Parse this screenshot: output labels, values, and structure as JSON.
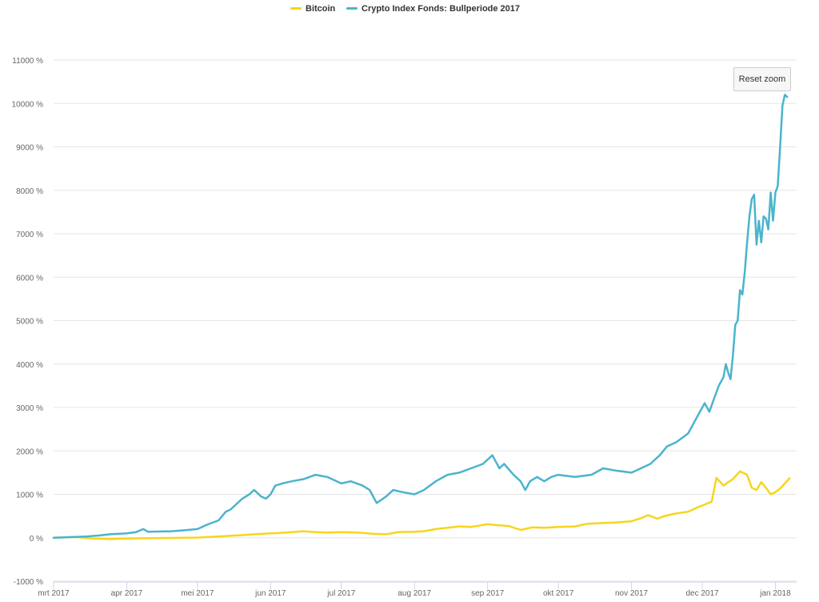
{
  "reset_zoom_label": "Reset zoom",
  "chart_data": {
    "type": "line",
    "y_unit": "%",
    "ylim": [
      -1000,
      11000
    ],
    "y_ticks": [
      -1000,
      0,
      1000,
      2000,
      3000,
      4000,
      5000,
      6000,
      7000,
      8000,
      9000,
      10000,
      11000
    ],
    "y_tick_labels": [
      "-1000 %",
      "0 %",
      "1000 %",
      "2000 %",
      "3000 %",
      "4000 %",
      "5000 %",
      "6000 %",
      "7000 %",
      "8000 %",
      "9000 %",
      "10000 %",
      "11000 %"
    ],
    "xlim": [
      "2017-03-01",
      "2018-01-10"
    ],
    "x_tick_dates": [
      "2017-03-01",
      "2017-04-01",
      "2017-05-01",
      "2017-06-01",
      "2017-07-01",
      "2017-08-01",
      "2017-09-01",
      "2017-10-01",
      "2017-11-01",
      "2017-12-01",
      "2018-01-01"
    ],
    "x_tick_labels": [
      "mrt 2017",
      "apr 2017",
      "mei 2017",
      "jun 2017",
      "jul 2017",
      "aug 2017",
      "sep 2017",
      "okt 2017",
      "nov 2017",
      "dec 2017",
      "jan 2018"
    ],
    "legend_position": "top-center",
    "grid": true,
    "series": [
      {
        "name": "Bitcoin",
        "color": "#f7d51d",
        "points": [
          [
            "2017-03-01",
            0
          ],
          [
            "2017-03-10",
            20
          ],
          [
            "2017-03-18",
            -20
          ],
          [
            "2017-03-25",
            -30
          ],
          [
            "2017-04-01",
            -20
          ],
          [
            "2017-04-10",
            -10
          ],
          [
            "2017-04-20",
            -5
          ],
          [
            "2017-05-01",
            5
          ],
          [
            "2017-05-10",
            30
          ],
          [
            "2017-05-20",
            60
          ],
          [
            "2017-05-25",
            80
          ],
          [
            "2017-06-01",
            100
          ],
          [
            "2017-06-05",
            110
          ],
          [
            "2017-06-10",
            130
          ],
          [
            "2017-06-15",
            150
          ],
          [
            "2017-06-20",
            130
          ],
          [
            "2017-06-25",
            120
          ],
          [
            "2017-07-01",
            130
          ],
          [
            "2017-07-08",
            120
          ],
          [
            "2017-07-15",
            90
          ],
          [
            "2017-07-20",
            80
          ],
          [
            "2017-07-25",
            130
          ],
          [
            "2017-08-01",
            140
          ],
          [
            "2017-08-05",
            150
          ],
          [
            "2017-08-10",
            200
          ],
          [
            "2017-08-15",
            230
          ],
          [
            "2017-08-20",
            260
          ],
          [
            "2017-08-25",
            250
          ],
          [
            "2017-09-01",
            310
          ],
          [
            "2017-09-05",
            290
          ],
          [
            "2017-09-10",
            270
          ],
          [
            "2017-09-15",
            180
          ],
          [
            "2017-09-20",
            240
          ],
          [
            "2017-09-25",
            230
          ],
          [
            "2017-10-01",
            250
          ],
          [
            "2017-10-08",
            260
          ],
          [
            "2017-10-13",
            320
          ],
          [
            "2017-10-20",
            340
          ],
          [
            "2017-10-25",
            350
          ],
          [
            "2017-11-01",
            380
          ],
          [
            "2017-11-05",
            450
          ],
          [
            "2017-11-08",
            520
          ],
          [
            "2017-11-12",
            440
          ],
          [
            "2017-11-15",
            500
          ],
          [
            "2017-11-20",
            560
          ],
          [
            "2017-11-25",
            600
          ],
          [
            "2017-11-29",
            700
          ],
          [
            "2017-12-01",
            740
          ],
          [
            "2017-12-05",
            830
          ],
          [
            "2017-12-07",
            1380
          ],
          [
            "2017-12-10",
            1200
          ],
          [
            "2017-12-12",
            1280
          ],
          [
            "2017-12-14",
            1350
          ],
          [
            "2017-12-17",
            1530
          ],
          [
            "2017-12-20",
            1450
          ],
          [
            "2017-12-22",
            1150
          ],
          [
            "2017-12-24",
            1100
          ],
          [
            "2017-12-26",
            1280
          ],
          [
            "2017-12-28",
            1150
          ],
          [
            "2017-12-30",
            1000
          ],
          [
            "2018-01-01",
            1050
          ],
          [
            "2018-01-03",
            1130
          ],
          [
            "2018-01-05",
            1250
          ],
          [
            "2018-01-07",
            1370
          ]
        ]
      },
      {
        "name": "Crypto Index Fonds: Bullperiode 2017",
        "color": "#4bb4cc",
        "points": [
          [
            "2017-03-01",
            0
          ],
          [
            "2017-03-10",
            20
          ],
          [
            "2017-03-15",
            30
          ],
          [
            "2017-03-20",
            50
          ],
          [
            "2017-03-25",
            80
          ],
          [
            "2017-04-01",
            100
          ],
          [
            "2017-04-05",
            130
          ],
          [
            "2017-04-08",
            200
          ],
          [
            "2017-04-10",
            140
          ],
          [
            "2017-04-20",
            150
          ],
          [
            "2017-04-25",
            170
          ],
          [
            "2017-05-01",
            200
          ],
          [
            "2017-05-05",
            300
          ],
          [
            "2017-05-10",
            400
          ],
          [
            "2017-05-13",
            600
          ],
          [
            "2017-05-15",
            650
          ],
          [
            "2017-05-20",
            900
          ],
          [
            "2017-05-23",
            1000
          ],
          [
            "2017-05-25",
            1100
          ],
          [
            "2017-05-28",
            950
          ],
          [
            "2017-05-30",
            900
          ],
          [
            "2017-06-01",
            1000
          ],
          [
            "2017-06-03",
            1200
          ],
          [
            "2017-06-06",
            1250
          ],
          [
            "2017-06-10",
            1300
          ],
          [
            "2017-06-15",
            1350
          ],
          [
            "2017-06-20",
            1450
          ],
          [
            "2017-06-25",
            1400
          ],
          [
            "2017-07-01",
            1250
          ],
          [
            "2017-07-05",
            1300
          ],
          [
            "2017-07-10",
            1200
          ],
          [
            "2017-07-13",
            1100
          ],
          [
            "2017-07-16",
            800
          ],
          [
            "2017-07-20",
            950
          ],
          [
            "2017-07-23",
            1100
          ],
          [
            "2017-07-27",
            1050
          ],
          [
            "2017-08-01",
            1000
          ],
          [
            "2017-08-05",
            1100
          ],
          [
            "2017-08-10",
            1300
          ],
          [
            "2017-08-15",
            1450
          ],
          [
            "2017-08-20",
            1500
          ],
          [
            "2017-08-25",
            1600
          ],
          [
            "2017-08-30",
            1700
          ],
          [
            "2017-09-01",
            1800
          ],
          [
            "2017-09-03",
            1900
          ],
          [
            "2017-09-06",
            1600
          ],
          [
            "2017-09-08",
            1700
          ],
          [
            "2017-09-12",
            1450
          ],
          [
            "2017-09-15",
            1300
          ],
          [
            "2017-09-17",
            1100
          ],
          [
            "2017-09-19",
            1300
          ],
          [
            "2017-09-22",
            1400
          ],
          [
            "2017-09-25",
            1300
          ],
          [
            "2017-09-28",
            1400
          ],
          [
            "2017-10-01",
            1450
          ],
          [
            "2017-10-08",
            1400
          ],
          [
            "2017-10-15",
            1450
          ],
          [
            "2017-10-20",
            1600
          ],
          [
            "2017-10-25",
            1550
          ],
          [
            "2017-11-01",
            1500
          ],
          [
            "2017-11-05",
            1600
          ],
          [
            "2017-11-09",
            1700
          ],
          [
            "2017-11-13",
            1900
          ],
          [
            "2017-11-16",
            2100
          ],
          [
            "2017-11-20",
            2200
          ],
          [
            "2017-11-25",
            2400
          ],
          [
            "2017-11-29",
            2800
          ],
          [
            "2017-12-02",
            3100
          ],
          [
            "2017-12-04",
            2900
          ],
          [
            "2017-12-06",
            3200
          ],
          [
            "2017-12-08",
            3500
          ],
          [
            "2017-12-10",
            3700
          ],
          [
            "2017-12-11",
            4000
          ],
          [
            "2017-12-12",
            3800
          ],
          [
            "2017-12-13",
            3650
          ],
          [
            "2017-12-14",
            4200
          ],
          [
            "2017-12-15",
            4900
          ],
          [
            "2017-12-16",
            5000
          ],
          [
            "2017-12-17",
            5700
          ],
          [
            "2017-12-18",
            5600
          ],
          [
            "2017-12-19",
            6100
          ],
          [
            "2017-12-20",
            6800
          ],
          [
            "2017-12-21",
            7400
          ],
          [
            "2017-12-22",
            7800
          ],
          [
            "2017-12-23",
            7900
          ],
          [
            "2017-12-24",
            6750
          ],
          [
            "2017-12-25",
            7300
          ],
          [
            "2017-12-26",
            6800
          ],
          [
            "2017-12-27",
            7400
          ],
          [
            "2017-12-28",
            7350
          ],
          [
            "2017-12-29",
            7100
          ],
          [
            "2017-12-30",
            7950
          ],
          [
            "2017-12-31",
            7300
          ],
          [
            "2018-01-01",
            7950
          ],
          [
            "2018-01-02",
            8100
          ],
          [
            "2018-01-03",
            9000
          ],
          [
            "2018-01-04",
            9950
          ],
          [
            "2018-01-05",
            10200
          ],
          [
            "2018-01-06",
            10150
          ]
        ]
      }
    ]
  }
}
